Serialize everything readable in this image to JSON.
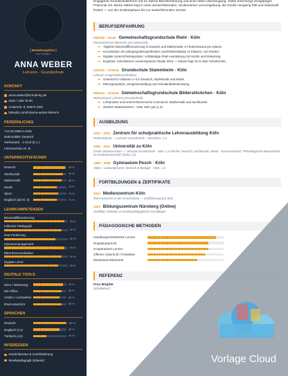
{
  "sidebar": {
    "photo": {
      "line1": "[ Bewerbungsfoto ]",
      "line2": "hier einfügen"
    },
    "name": "ANNA WEBER",
    "role": "Lehrerin · Grundschule",
    "contact": {
      "title": "KONTAKT",
      "items": [
        "anna.weber@schule-kg.de",
        "0221 / 456 78 90",
        "Lindenstr. 8, 50674 Köln",
        "linkedin.com/in/anna-weber-lehrerin"
      ]
    },
    "personal": {
      "title": "PERSÖNLICHES",
      "items": [
        "*14.03.1988 in Köln",
        "Nationalität: Deutsch",
        "Verheiratet · 1 Kind (8 J.)",
        "Führerschein Kl. B"
      ]
    },
    "subjects": {
      "title": "UNTERRICHTSFÄCHER",
      "names": [
        "Deutsch",
        "Sachkunde",
        "Mathematik",
        "Musik",
        "Sport",
        "Englisch (ab Kl. 3)"
      ],
      "values": [
        95,
        90,
        85,
        70,
        75,
        70
      ],
      "value_labels": [
        "95 %",
        "90 %",
        "85 %",
        "70 %",
        "75 %",
        "70 %"
      ]
    },
    "competences": {
      "title": "LEHRKOMPETENZEN",
      "names": [
        "Binnendifferenzierung",
        "Inklusive Pädagogik",
        "DaZ-Förderung",
        "Klassenmanagement",
        "Elternkommunikation",
        "Digitale Lehre"
      ],
      "values": [
        95,
        90,
        80,
        95,
        90,
        85
      ],
      "value_labels": [
        "95 %",
        "90 %",
        "80 %",
        "95 %",
        "90 %",
        "85 %"
      ]
    },
    "tools": {
      "title": "DIGITALE TOOLS",
      "names": [
        "iServ / itslearning",
        "MS Office",
        "Antolin / Lernwelten",
        "iPad-Unterricht"
      ],
      "values": [
        90,
        85,
        80,
        85
      ],
      "value_labels": [
        "90 %",
        "85 %",
        "80 %",
        "85 %"
      ]
    },
    "languages": {
      "title": "SPRACHEN",
      "names": [
        "Deutsch",
        "Englisch (C1)",
        "Türkisch (A2)"
      ],
      "values": [
        100,
        80,
        40
      ],
      "value_labels": [
        "100 %",
        "80 %",
        "40 %"
      ]
    },
    "interests": {
      "title": "INTERESSEN",
      "items": [
        "Kinderliteratur & Leseförderung",
        "Musikpädagogik (Klavier)"
      ]
    }
  },
  "main": {
    "intro": "Engagierte Grundschullehrerin mit 10 Jahren Berufserfahrung und einer tiefen Überzeugung: Jedes Kind bringt einzigartiges Potenzial mit. Meine Stärke liegt in einer wertschätzenden, strukturierten Lernumgebung, die Kinder neugierig hält und individuell fördert — von der Erstlesephase bis zur weiterführenden Schule.",
    "experience": {
      "title": "BERUFSERFAHRUNG",
      "entries": [
        {
          "date": "08/2018 – heute",
          "org": "Gemeinschaftsgrundschule Riehl · Köln",
          "role": "Klassenlehrerin (Beamtin auf Lebenszeit)",
          "bullets": [
            "Tägliche Binnendifferenzierung in Deutsch und Mathematik: 5 Förderniveaus pro Klasse.",
            "Koordination der jahrgangsübergreifenden Leseförderinitiative (4 Klassen, 110 Kinder).",
            "Digitale Unterrichtsintegration: vollständige iPad-Ausstattung mit Antolin und Itslearning.",
            "Ergebnis: Schulinterne Lesekompetenz-Studie 2023 — Klasse liegt 18 % über Schulschnitt."
          ]
        },
        {
          "date": "02/2016 – 07/2018",
          "org": "Grundschule Stammheim · Köln",
          "role": "Lehrerin (Angestelltenverhältnis)",
          "bullets": [
            "Unterricht in Klassen 1–4 in Deutsch, Sachkunde und Musik.",
            "Elterngespräche, Zeugniserstellung und Schullaufbahnberatung."
          ]
        },
        {
          "date": "09/2013 – 01/2016",
          "org": "Gemeinschaftsgrundschule Bilderstöckchen · Köln",
          "role": "Referendarin/ Lehrerin (Grundschule)",
          "bullets": [
            "Lehrproben und Unterrichtsversuche in Deutsch, Mathematik und Sachkunde.",
            "Zweites Staatsexamen · Note Sehr gut (1,3)."
          ]
        }
      ]
    },
    "education": {
      "title": "AUSBILDUNG",
      "entries": [
        {
          "date": "2011 – 2013",
          "org": "Zentrum für schulpraktische Lehrerausbildung Köln",
          "detail": "Referendariat — Lehramt Grundschule · Abschluss: 1,3"
        },
        {
          "date": "2006 – 2011",
          "org": "Universität zu Köln",
          "detail": "Erstes Staatsexamen — Lehramt Grundschule · Note: 1,4 Fächer: Deutsch, Sachkunde, Musik · Examensarbeit: \"Phonologische Bewusstheit im Erstleseunterricht\" (Note 1,0)"
        },
        {
          "date": "1998 – 2006",
          "org": "Gymnasium Pesch · Köln",
          "detail": "Abitur · Leistungskurse: Deutsch & Biologie · Note: 1,6"
        }
      ]
    },
    "training": {
      "title": "FORTBILDUNGEN & ZERTIFIKATE",
      "entries": [
        {
          "date": "2024",
          "org": "Medienzentrum Köln",
          "detail": "iPad-Unterricht in der Grundschule — Zertifizierung (16 Std.)"
        },
        {
          "date": "2022",
          "org": "Bildungszentrum Nürnberg (Online)",
          "detail": "Zertifikat: Inklusion & sonderpädagogische Grundlagen"
        }
      ]
    },
    "methods": {
      "title": "PÄDAGOGISCHE METHODEN",
      "names": [
        "Handlungsorientiertes Lernen",
        "Projektunterricht",
        "Kooperatives Lernen",
        "Offener Unterricht / Freiarbeit",
        "Montessori-Elemente"
      ],
      "values": [
        90,
        80,
        80,
        75,
        65
      ]
    },
    "reference": {
      "title": "REFERENZ",
      "lines": [
        "Frau Brigitte",
        "Schulleiterin"
      ]
    }
  },
  "watermark": {
    "brand": "Vorlage Cloud"
  }
}
